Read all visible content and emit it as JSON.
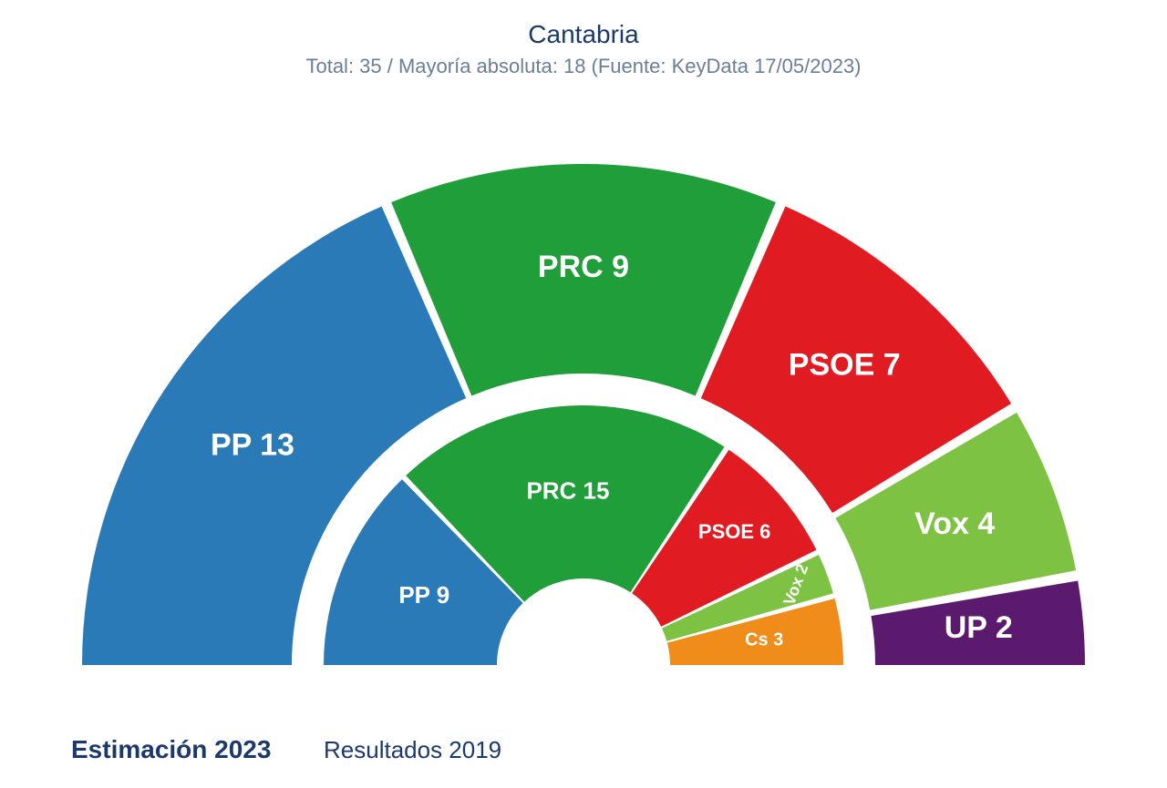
{
  "title": "Cantabria",
  "subtitle": "Total: 35 / Mayoría absoluta: 18 (Fuente: KeyData 17/05/2023)",
  "type": "semicircle-parliament",
  "total_seats": 35,
  "background_color": "#ffffff",
  "gap_degrees": 1.2,
  "outer": {
    "label": "Estimación 2023",
    "r_out": 550,
    "r_in": 320,
    "label_r": 435,
    "font_size": 34,
    "segments": [
      {
        "party": "PP",
        "seats": 13,
        "color": "#2a7ab8",
        "text": "PP 13"
      },
      {
        "party": "PRC",
        "seats": 9,
        "color": "#1f9e3a",
        "text": "PRC 9"
      },
      {
        "party": "PSOE",
        "seats": 7,
        "color": "#e11b22",
        "text": "PSOE 7"
      },
      {
        "party": "Vox",
        "seats": 4,
        "color": "#7dc242",
        "text": "Vox 4"
      },
      {
        "party": "UP",
        "seats": 2,
        "color": "#5b1a6e",
        "text": "UP 2"
      }
    ]
  },
  "inner": {
    "label": "Resultados 2019",
    "r_out": 285,
    "r_in": 95,
    "label_r": 190,
    "font_size": 26,
    "segments": [
      {
        "party": "PP",
        "seats": 9,
        "color": "#2a7ab8",
        "text": "PP 9"
      },
      {
        "party": "PRC",
        "seats": 15,
        "color": "#1f9e3a",
        "text": "PRC 15"
      },
      {
        "party": "PSOE",
        "seats": 6,
        "color": "#e11b22",
        "text": "PSOE 6",
        "font_size": 22,
        "label_r": 220
      },
      {
        "party": "Vox",
        "seats": 2,
        "color": "#7dc242",
        "text": "Vox 2",
        "font_size": 18,
        "label_r": 250,
        "rotate": true
      },
      {
        "party": "Cs",
        "seats": 3,
        "color": "#f08c1a",
        "text": "Cs 3",
        "font_size": 20,
        "label_r": 200
      }
    ]
  },
  "captions": {
    "outer": "Estimación 2023",
    "inner": "Resultados 2019"
  },
  "title_color": "#1b3a6b",
  "subtitle_color": "#6b7e99",
  "title_fontsize": 28,
  "subtitle_fontsize": 22,
  "caption_fontsize": 28
}
